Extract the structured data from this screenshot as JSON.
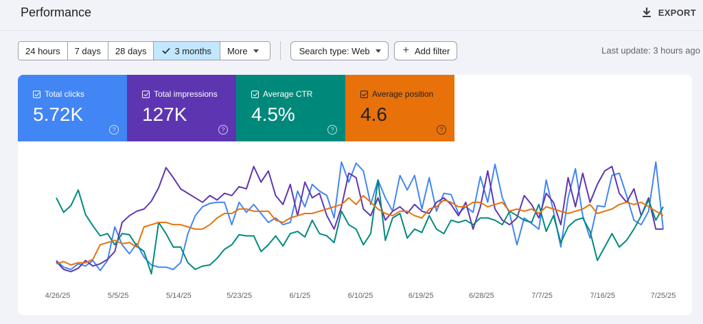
{
  "header": {
    "title": "Performance",
    "export_label": "EXPORT"
  },
  "filters": {
    "date_ranges": [
      "24 hours",
      "7 days",
      "28 days",
      "3 months",
      "More"
    ],
    "selected_range": "3 months",
    "search_type": "Search type: Web",
    "add_filter": "Add filter",
    "last_update": "Last update: 3 hours ago"
  },
  "metrics": [
    {
      "label": "Total clicks",
      "value": "5.72K",
      "color": "#4285f4",
      "text_color": "#ffffff"
    },
    {
      "label": "Total impressions",
      "value": "127K",
      "color": "#5e35b1",
      "text_color": "#ffffff"
    },
    {
      "label": "Average CTR",
      "value": "4.5%",
      "color": "#00897b",
      "text_color": "#ffffff"
    },
    {
      "label": "Average position",
      "value": "4.6",
      "color": "#e8710a",
      "text_color": "#202124"
    }
  ],
  "icons": {
    "export": "download-icon",
    "check": "check-icon",
    "caret": "caret-down-icon",
    "plus": "plus-icon",
    "help": "help-circle-icon"
  },
  "chart_data": {
    "type": "line",
    "x_tick_labels": [
      "4/26/25",
      "5/5/25",
      "5/14/25",
      "5/23/25",
      "6/1/25",
      "6/10/25",
      "6/19/25",
      "6/28/25",
      "7/7/25",
      "7/16/25",
      "7/25/25"
    ],
    "x_start": "2025-04-26",
    "axes_visible": false,
    "series": [
      {
        "name": "Total clicks",
        "color": "#4285f4",
        "values": [
          0.12,
          0.06,
          0.04,
          0.09,
          0.07,
          0.12,
          0.03,
          0.12,
          0.42,
          0.26,
          0.18,
          0.27,
          0.15,
          0.08,
          0.06,
          0.06,
          0.04,
          0.1,
          0.36,
          0.52,
          0.6,
          0.63,
          0.64,
          0.64,
          0.44,
          0.64,
          0.55,
          0.62,
          0.54,
          0.46,
          0.5,
          0.44,
          0.46,
          0.74,
          0.6,
          0.8,
          0.74,
          0.7,
          0.5,
          1.0,
          0.82,
          0.99,
          0.92,
          0.62,
          0.84,
          0.68,
          0.56,
          0.88,
          0.75,
          0.88,
          0.58,
          0.86,
          0.56,
          0.72,
          0.71,
          0.54,
          0.6,
          0.55,
          0.87,
          0.64,
          0.98,
          0.68,
          0.54,
          0.26,
          0.5,
          0.45,
          0.4,
          0.84,
          0.56,
          0.24,
          0.68,
          0.94,
          0.52,
          0.32,
          0.61,
          0.6,
          0.88,
          0.9,
          0.7,
          0.48,
          0.44,
          0.56,
          1.0,
          0.4
        ]
      },
      {
        "name": "Total impressions",
        "color": "#5e35b1",
        "values": [
          0.11,
          0.04,
          0.02,
          0.05,
          0.12,
          0.07,
          0.09,
          0.13,
          0.2,
          0.46,
          0.52,
          0.56,
          0.58,
          0.65,
          0.77,
          0.95,
          0.86,
          0.76,
          0.72,
          0.68,
          0.64,
          0.7,
          0.66,
          0.72,
          0.7,
          0.78,
          0.76,
          0.96,
          0.82,
          0.92,
          0.7,
          0.62,
          0.8,
          0.52,
          0.82,
          0.68,
          0.72,
          0.52,
          0.4,
          0.6,
          0.9,
          0.86,
          0.58,
          0.52,
          0.68,
          0.48,
          0.56,
          0.6,
          0.54,
          0.62,
          0.56,
          0.54,
          0.64,
          0.68,
          0.62,
          0.52,
          0.64,
          0.4,
          0.6,
          0.92,
          0.58,
          0.48,
          0.44,
          0.5,
          0.7,
          0.62,
          0.5,
          0.72,
          0.64,
          0.44,
          0.86,
          0.6,
          0.9,
          0.64,
          0.8,
          0.92,
          0.96,
          0.72,
          0.64,
          0.76,
          0.52,
          0.68,
          0.4,
          0.4
        ]
      },
      {
        "name": "Average CTR",
        "color": "#00897b",
        "values": [
          0.68,
          0.55,
          0.61,
          0.75,
          0.53,
          0.43,
          0.34,
          0.36,
          0.26,
          0.36,
          0.35,
          0.25,
          0.2,
          0.0,
          0.46,
          0.36,
          0.24,
          0.24,
          0.1,
          0.04,
          0.07,
          0.08,
          0.14,
          0.22,
          0.26,
          0.35,
          0.34,
          0.34,
          0.2,
          0.26,
          0.34,
          0.25,
          0.36,
          0.38,
          0.33,
          0.48,
          0.36,
          0.34,
          0.28,
          0.56,
          0.44,
          0.4,
          0.26,
          0.36,
          0.84,
          0.3,
          0.5,
          0.54,
          0.32,
          0.4,
          0.37,
          0.52,
          0.4,
          0.36,
          0.48,
          0.46,
          0.48,
          0.44,
          0.5,
          0.5,
          0.48,
          0.44,
          0.56,
          0.52,
          0.48,
          0.46,
          0.62,
          0.38,
          0.52,
          0.28,
          0.42,
          0.48,
          0.5,
          0.38,
          0.12,
          0.24,
          0.36,
          0.24,
          0.3,
          0.4,
          0.52,
          0.66,
          0.48,
          0.6
        ]
      },
      {
        "name": "Average position",
        "color": "#e8710a",
        "values": [
          0.09,
          0.11,
          0.08,
          0.1,
          0.1,
          0.13,
          0.26,
          0.28,
          0.3,
          0.27,
          0.28,
          0.24,
          0.42,
          0.44,
          0.46,
          0.46,
          0.44,
          0.44,
          0.42,
          0.4,
          0.4,
          0.44,
          0.5,
          0.54,
          0.54,
          0.58,
          0.58,
          0.56,
          0.56,
          0.56,
          0.48,
          0.46,
          0.5,
          0.52,
          0.54,
          0.54,
          0.56,
          0.58,
          0.6,
          0.62,
          0.68,
          0.62,
          0.7,
          0.64,
          0.58,
          0.54,
          0.52,
          0.56,
          0.56,
          0.52,
          0.5,
          0.58,
          0.6,
          0.66,
          0.64,
          0.6,
          0.6,
          0.64,
          0.64,
          0.6,
          0.62,
          0.64,
          0.56,
          0.58,
          0.56,
          0.58,
          0.54,
          0.6,
          0.58,
          0.56,
          0.54,
          0.56,
          0.58,
          0.62,
          0.54,
          0.56,
          0.58,
          0.62,
          0.64,
          0.62,
          0.64,
          0.6,
          0.56,
          0.52
        ]
      }
    ]
  }
}
